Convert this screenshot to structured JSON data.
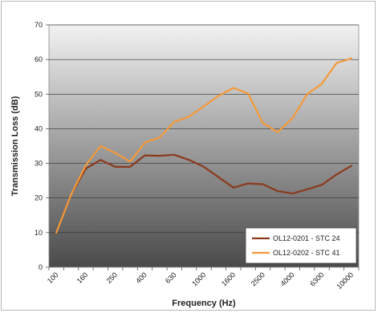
{
  "chart_data": {
    "type": "line",
    "title": "",
    "xlabel": "Frequency (Hz)",
    "ylabel": "Transmission Loss (dB)",
    "categories": [
      "100",
      "125",
      "160",
      "200",
      "250",
      "315",
      "400",
      "500",
      "630",
      "800",
      "1000",
      "1250",
      "1600",
      "2000",
      "2500",
      "3150",
      "4000",
      "5000",
      "6300",
      "8000",
      "10000"
    ],
    "x_tick_labels": [
      "100",
      "160",
      "250",
      "400",
      "630",
      "1000",
      "1600",
      "2500",
      "4000",
      "6300",
      "10000"
    ],
    "ylim": [
      0,
      70
    ],
    "y_ticks": [
      0,
      10,
      20,
      30,
      40,
      50,
      60,
      70
    ],
    "grid": true,
    "legend_position": "bottom-right",
    "colors": {
      "plot_top": "#f2f2f2",
      "plot_bottom": "#4a4a4a",
      "gridline": "#303030"
    },
    "series": [
      {
        "name": "OL12-0201 - STC 24",
        "color": "#8b3a1e",
        "values": [
          10,
          21,
          28.5,
          31,
          29,
          29,
          32.3,
          32.2,
          32.5,
          31,
          29,
          26,
          23,
          24.2,
          24,
          22,
          21.3,
          22.5,
          23.8,
          26.8,
          29.3
        ]
      },
      {
        "name": "OL12-0202 - STC 41",
        "color": "#f39a3a",
        "values": [
          10,
          21,
          29.5,
          35,
          33,
          30.5,
          36,
          37.5,
          42,
          43.5,
          46.5,
          49.5,
          51.8,
          50.2,
          41.7,
          39,
          43,
          50,
          53,
          59,
          60.3
        ]
      }
    ]
  }
}
